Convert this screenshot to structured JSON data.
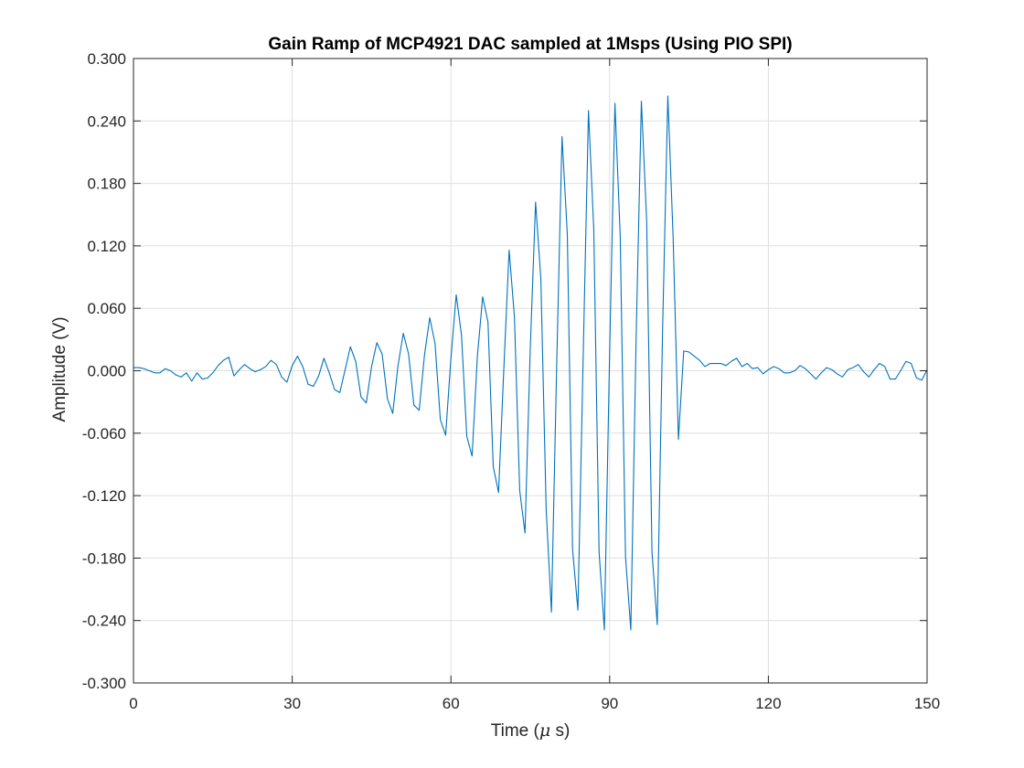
{
  "chart_data": {
    "type": "line",
    "title": "Gain Ramp of MCP4921 DAC sampled at 1Msps (Using PIO SPI)",
    "xlabel_prefix": "Time (",
    "xlabel_symbol": "μ",
    "xlabel_suffix": " s)",
    "ylabel": "Amplitude (V)",
    "xlim": [
      0,
      150
    ],
    "ylim": [
      -0.3,
      0.3
    ],
    "xticks": [
      0,
      30,
      60,
      90,
      120,
      150
    ],
    "xtick_labels": [
      "0",
      "30",
      "60",
      "90",
      "120",
      "150"
    ],
    "yticks": [
      -0.3,
      -0.24,
      -0.18,
      -0.12,
      -0.06,
      0.0,
      0.06,
      0.12,
      0.18,
      0.24,
      0.3
    ],
    "ytick_labels": [
      "-0.300",
      "-0.240",
      "-0.180",
      "-0.120",
      "-0.060",
      "0.000",
      "0.060",
      "0.120",
      "0.180",
      "0.240",
      "0.300"
    ],
    "grid": true,
    "line_color": "#0072BD",
    "series": [
      {
        "x": [
          0,
          1,
          2,
          3,
          4,
          5,
          6,
          7,
          8,
          9,
          10,
          11,
          12,
          13,
          14,
          15,
          16,
          17,
          18,
          19,
          20,
          21,
          22,
          23,
          24,
          25,
          26,
          27,
          28,
          29,
          30,
          31,
          32,
          33,
          34,
          35,
          36,
          37,
          38,
          39,
          40,
          41,
          42,
          43,
          44,
          45,
          46,
          47,
          48,
          49,
          50,
          51,
          52,
          53,
          54,
          55,
          56,
          57,
          58,
          59,
          60,
          61,
          62,
          63,
          64,
          65,
          66,
          67,
          68,
          69,
          70,
          71,
          72,
          73,
          74,
          75,
          76,
          77,
          78,
          79,
          80,
          81,
          82,
          83,
          84,
          85,
          86,
          87,
          88,
          89,
          90,
          91,
          92,
          93,
          94,
          95,
          96,
          97,
          98,
          99,
          100,
          101,
          102,
          103,
          104,
          105,
          106,
          107,
          108,
          109,
          110,
          111,
          112,
          113,
          114,
          115,
          116,
          117,
          118,
          119,
          120,
          121,
          122,
          123,
          124,
          125,
          126,
          127,
          128,
          129,
          130,
          131,
          132,
          133,
          134,
          135,
          136,
          137,
          138,
          139,
          140,
          141,
          142,
          143,
          144,
          145,
          146,
          147,
          148,
          149,
          150
        ],
        "y": [
          0.003,
          0.003,
          0.002,
          0.0,
          -0.002,
          -0.002,
          0.002,
          0.0,
          -0.004,
          -0.006,
          -0.002,
          -0.01,
          -0.002,
          -0.008,
          -0.007,
          -0.002,
          0.005,
          0.01,
          0.013,
          -0.005,
          0.001,
          0.006,
          0.002,
          -0.001,
          0.001,
          0.004,
          0.01,
          0.006,
          -0.006,
          -0.011,
          0.005,
          0.014,
          0.004,
          -0.013,
          -0.015,
          -0.005,
          0.012,
          -0.002,
          -0.018,
          -0.021,
          0.001,
          0.023,
          0.009,
          -0.025,
          -0.031,
          0.004,
          0.027,
          0.016,
          -0.027,
          -0.041,
          0.005,
          0.036,
          0.016,
          -0.033,
          -0.038,
          0.015,
          0.051,
          0.026,
          -0.047,
          -0.062,
          0.012,
          0.073,
          0.034,
          -0.063,
          -0.082,
          0.014,
          0.071,
          0.047,
          -0.092,
          -0.117,
          0.002,
          0.116,
          0.052,
          -0.115,
          -0.156,
          0.022,
          0.162,
          0.088,
          -0.133,
          -0.232,
          0.008,
          0.225,
          0.131,
          -0.172,
          -0.23,
          0.014,
          0.25,
          0.136,
          -0.174,
          -0.249,
          0.018,
          0.257,
          0.129,
          -0.179,
          -0.249,
          0.03,
          0.259,
          0.144,
          -0.174,
          -0.244,
          0.038,
          0.264,
          0.128,
          -0.066,
          0.019,
          0.018,
          0.014,
          0.01,
          0.004,
          0.007,
          0.007,
          0.007,
          0.005,
          0.009,
          0.012,
          0.004,
          0.007,
          0.002,
          0.003,
          -0.003,
          0.001,
          0.004,
          0.002,
          -0.002,
          -0.002,
          0.0,
          0.005,
          0.002,
          -0.003,
          -0.008,
          -0.002,
          0.003,
          0.001,
          -0.003,
          -0.006,
          0.001,
          0.003,
          0.006,
          -0.001,
          -0.006,
          0.001,
          0.007,
          0.004,
          -0.008,
          -0.008,
          0.0,
          0.009,
          0.007,
          -0.007,
          -0.009,
          0.001
        ]
      }
    ]
  }
}
